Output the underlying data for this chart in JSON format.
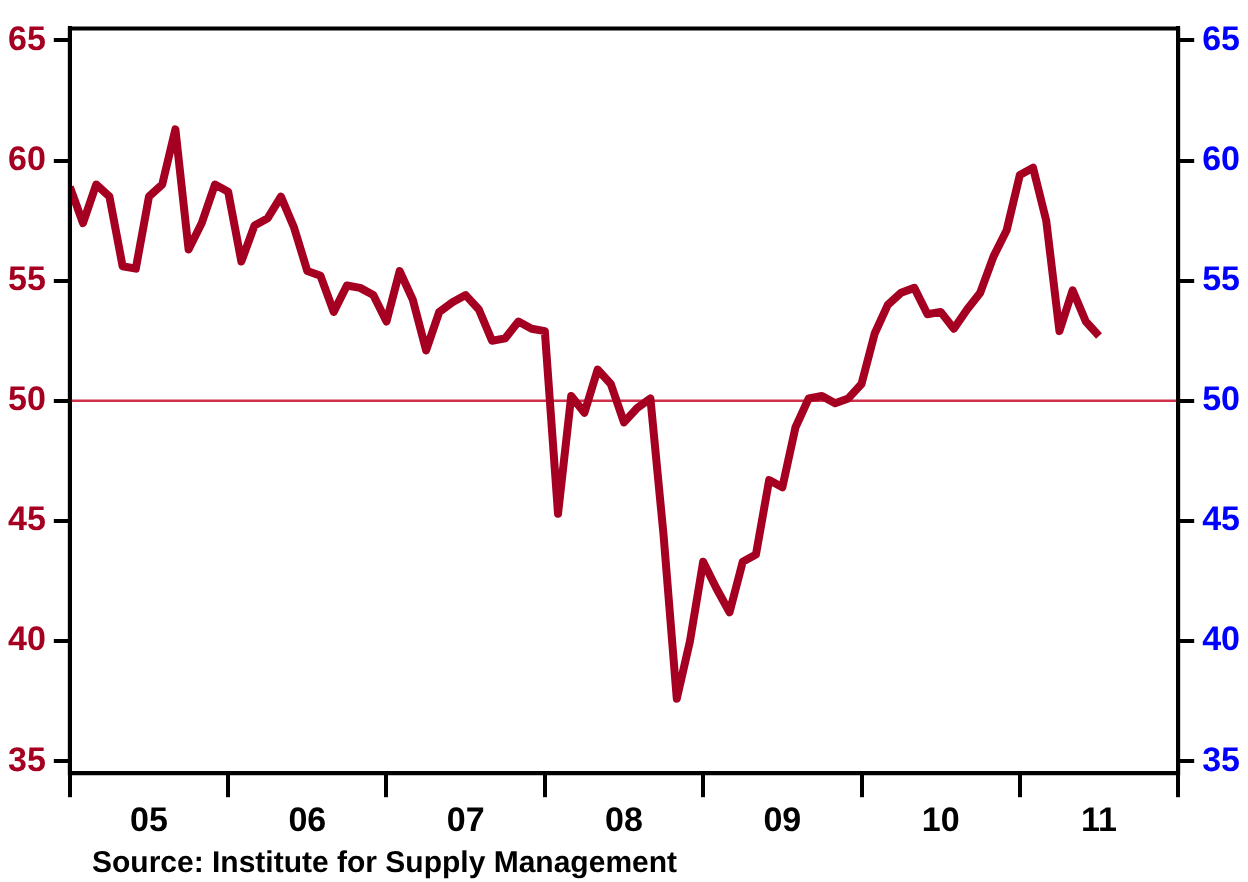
{
  "chart_data": {
    "type": "line",
    "x": [
      "2005-01",
      "2005-02",
      "2005-03",
      "2005-04",
      "2005-05",
      "2005-06",
      "2005-07",
      "2005-08",
      "2005-09",
      "2005-10",
      "2005-11",
      "2005-12",
      "2006-01",
      "2006-02",
      "2006-03",
      "2006-04",
      "2006-05",
      "2006-06",
      "2006-07",
      "2006-08",
      "2006-09",
      "2006-10",
      "2006-11",
      "2006-12",
      "2007-01",
      "2007-02",
      "2007-03",
      "2007-04",
      "2007-05",
      "2007-06",
      "2007-07",
      "2007-08",
      "2007-09",
      "2007-10",
      "2007-11",
      "2007-12",
      "2008-01",
      "2008-02",
      "2008-03",
      "2008-04",
      "2008-05",
      "2008-06",
      "2008-07",
      "2008-08",
      "2008-09",
      "2008-10",
      "2008-11",
      "2008-12",
      "2009-01",
      "2009-02",
      "2009-03",
      "2009-04",
      "2009-05",
      "2009-06",
      "2009-07",
      "2009-08",
      "2009-09",
      "2009-10",
      "2009-11",
      "2009-12",
      "2010-01",
      "2010-02",
      "2010-03",
      "2010-04",
      "2010-05",
      "2010-06",
      "2010-07",
      "2010-08",
      "2010-09",
      "2010-10",
      "2010-11",
      "2010-12",
      "2011-01",
      "2011-02",
      "2011-03",
      "2011-04",
      "2011-05",
      "2011-06",
      "2011-07"
    ],
    "series": [
      {
        "color": "#a50021",
        "values": [
          58.9,
          57.4,
          59.0,
          58.5,
          55.6,
          55.5,
          58.5,
          59.0,
          61.3,
          56.3,
          57.4,
          59.0,
          58.7,
          55.8,
          57.3,
          57.6,
          58.5,
          57.2,
          55.4,
          55.2,
          53.7,
          54.8,
          54.7,
          54.4,
          53.3,
          55.4,
          54.2,
          52.1,
          53.7,
          54.1,
          54.4,
          53.8,
          52.5,
          52.6,
          53.3,
          53.0,
          52.9,
          45.3,
          50.2,
          49.5,
          51.3,
          50.7,
          49.1,
          49.7,
          50.1,
          44.4,
          37.6,
          40.0,
          43.3,
          42.2,
          41.2,
          43.3,
          43.6,
          46.7,
          46.4,
          48.9,
          50.1,
          50.2,
          49.9,
          50.1,
          50.7,
          52.8,
          54.0,
          54.5,
          54.7,
          53.6,
          53.7,
          53.0,
          53.8,
          54.5,
          56.0,
          57.1,
          59.4,
          59.7,
          57.5,
          52.9,
          54.6,
          53.3,
          52.7
        ]
      }
    ],
    "xlim": [
      "2005-01",
      "2012-01"
    ],
    "xticks": [
      {
        "value": "2005-01",
        "label": null
      },
      {
        "value": "2005-07",
        "label": "05"
      },
      {
        "value": "2006-01",
        "label": null
      },
      {
        "value": "2006-07",
        "label": "06"
      },
      {
        "value": "2007-01",
        "label": null
      },
      {
        "value": "2007-07",
        "label": "07"
      },
      {
        "value": "2008-01",
        "label": null
      },
      {
        "value": "2008-07",
        "label": "08"
      },
      {
        "value": "2009-01",
        "label": null
      },
      {
        "value": "2009-07",
        "label": "09"
      },
      {
        "value": "2010-01",
        "label": null
      },
      {
        "value": "2010-07",
        "label": "10"
      },
      {
        "value": "2011-01",
        "label": null
      },
      {
        "value": "2011-07",
        "label": "11"
      },
      {
        "value": "2012-01",
        "label": null
      }
    ],
    "ylim": [
      34.5,
      65.5
    ],
    "yticks": [
      35,
      40,
      45,
      50,
      55,
      60,
      65
    ],
    "y2lim": [
      34.5,
      65.5
    ],
    "y2ticks": [
      35,
      40,
      45,
      50,
      55,
      60,
      65
    ],
    "ref_lines": [
      {
        "axis": "y",
        "value": 50,
        "color": "#d0304a"
      }
    ],
    "grid": false,
    "legend": false,
    "marker": "none",
    "line_style": "solid",
    "annotations": [
      "Source:  Institute for Supply Management"
    ]
  }
}
